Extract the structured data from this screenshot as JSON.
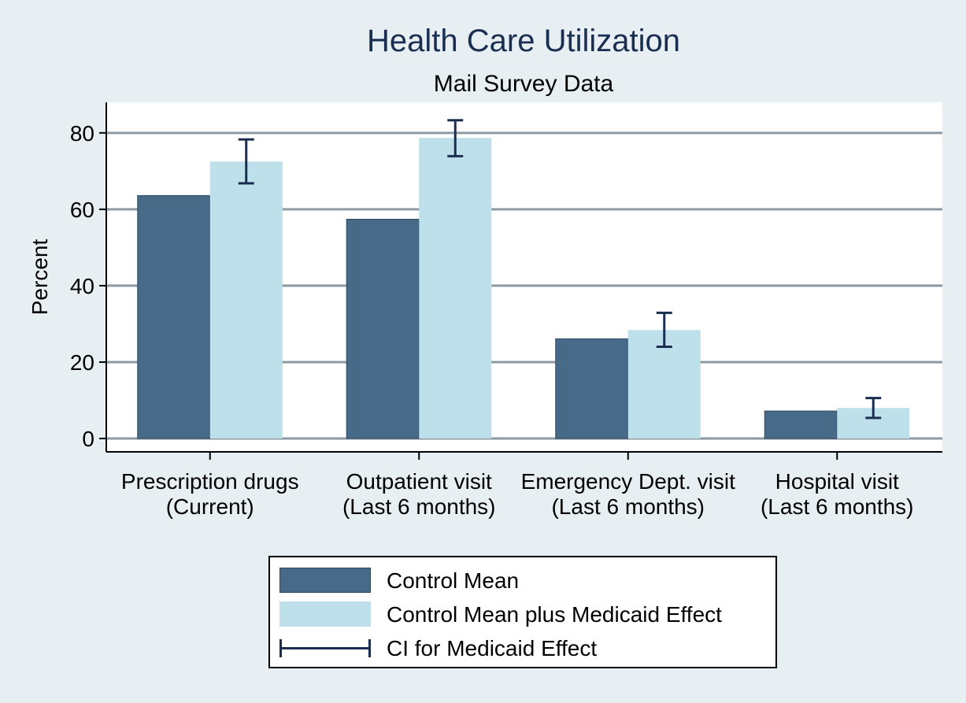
{
  "chart_data": {
    "type": "bar",
    "title": "Health Care Utilization",
    "subtitle": "Mail Survey Data",
    "ylabel": "Percent",
    "xlabel": "",
    "ylim": [
      -3.5,
      88
    ],
    "yticks": [
      0,
      20,
      40,
      60,
      80
    ],
    "grid": true,
    "legend_position": "bottom",
    "categories": [
      [
        "Prescription drugs",
        "(Current)"
      ],
      [
        "Outpatient visit",
        "(Last 6 months)"
      ],
      [
        "Emergency Dept. visit",
        "(Last 6 months)"
      ],
      [
        "Hospital visit",
        "(Last 6 months)"
      ]
    ],
    "series": [
      {
        "name": "Control Mean",
        "color": "#476a89",
        "values": [
          63.6,
          57.4,
          26.1,
          7.2
        ]
      },
      {
        "name": "Control Mean plus Medicaid Effect",
        "color": "#bde0ea",
        "values": [
          72.5,
          78.7,
          28.4,
          8.0
        ]
      }
    ],
    "error_bars": {
      "name": "CI for Medicaid Effect",
      "color": "#1a2e52",
      "low": [
        66.8,
        73.9,
        24.0,
        5.4
      ],
      "high": [
        78.3,
        83.3,
        32.9,
        10.6
      ]
    }
  },
  "legend": {
    "items": [
      {
        "label": "Control Mean"
      },
      {
        "label": "Control Mean plus Medicaid Effect"
      },
      {
        "label": "CI for Medicaid Effect"
      }
    ]
  }
}
